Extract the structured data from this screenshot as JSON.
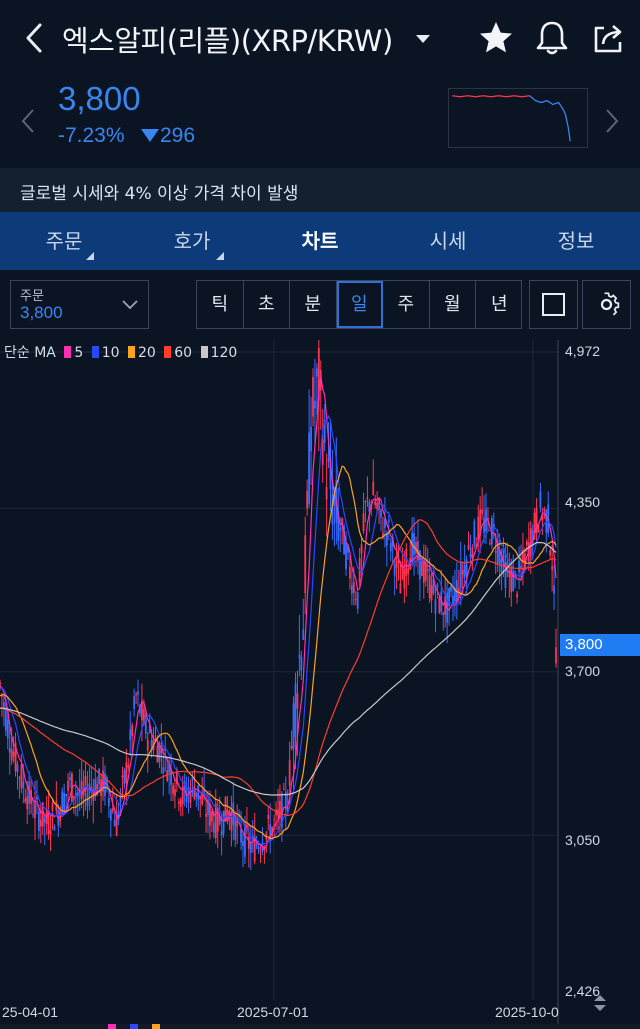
{
  "header": {
    "title": "엑스알피(리플)(XRP/KRW)",
    "icons": [
      "chevron-left-icon",
      "caret-down-icon",
      "star-icon",
      "bell-icon",
      "share-icon"
    ]
  },
  "quote": {
    "price": "3,800",
    "change_pct": "-7.23%",
    "change_abs": "296",
    "direction": "down"
  },
  "notice": "글로벌 시세와 4% 이상 가격 차이 발생",
  "tabs": [
    {
      "label": "주문",
      "has_menu": true
    },
    {
      "label": "호가",
      "has_menu": true
    },
    {
      "label": "차트",
      "active": true
    },
    {
      "label": "시세"
    },
    {
      "label": "정보"
    }
  ],
  "toolbar": {
    "order_label": "주문",
    "order_value": "3,800",
    "periods": [
      "틱",
      "초",
      "분",
      "일",
      "주",
      "월",
      "년"
    ],
    "active_period": "일"
  },
  "chart_data": {
    "type": "candlestick",
    "indicator_label": "단순 MA",
    "ma_periods": [
      {
        "label": "5",
        "color": "#ff2fb4"
      },
      {
        "label": "10",
        "color": "#2a48ff"
      },
      {
        "label": "20",
        "color": "#ffa21e"
      },
      {
        "label": "60",
        "color": "#ff3c2a"
      },
      {
        "label": "120",
        "color": "#c8c8c8"
      }
    ],
    "y_ticks": [
      "4,972",
      "4,350",
      "3,700",
      "3,050",
      "2,426"
    ],
    "y_range": [
      2426,
      4972
    ],
    "x_ticks": [
      "25-04-01",
      "2025-07-01",
      "2025-10-0"
    ],
    "current_price": 3800,
    "current_price_label": "3,800",
    "up_color": "#ff3552",
    "down_color": "#3a6cff"
  },
  "colors": {
    "accent_blue": "#3a86f0",
    "tab_bar": "#0d3a78",
    "background": "#0b1422"
  }
}
